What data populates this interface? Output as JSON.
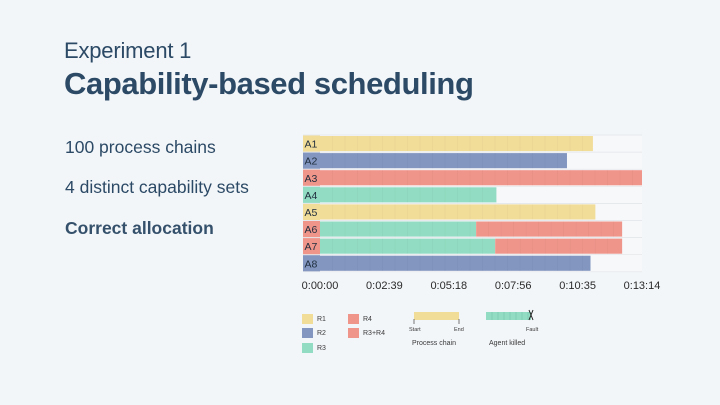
{
  "slide": {
    "subtitle": "Experiment 1",
    "title": "Capability-based scheduling",
    "bullets": [
      "100 process chains",
      "4 distinct capability sets",
      "Correct allocation"
    ]
  },
  "colors": {
    "R1": "#f1dc98",
    "R2": "#8296c0",
    "R3": "#92dcc3",
    "R4": "#f0958a",
    "R3+R4": "#f0958a"
  },
  "chart_data": {
    "type": "gantt",
    "x_ticks": [
      "0:00:00",
      "0:02:39",
      "0:05:18",
      "0:07:56",
      "0:10:35",
      "0:13:14"
    ],
    "x_max_seconds": 794,
    "rows": [
      {
        "label": "A1",
        "capability": "R1",
        "segments": [
          {
            "start": 0,
            "end": 673,
            "cap": "R1"
          }
        ]
      },
      {
        "label": "A2",
        "capability": "R2",
        "segments": [
          {
            "start": 0,
            "end": 609,
            "cap": "R2"
          }
        ]
      },
      {
        "label": "A3",
        "capability": "R4",
        "segments": [
          {
            "start": 0,
            "end": 794,
            "cap": "R4"
          }
        ]
      },
      {
        "label": "A4",
        "capability": "R3",
        "segments": [
          {
            "start": 0,
            "end": 435,
            "cap": "R3"
          }
        ]
      },
      {
        "label": "A5",
        "capability": "R1",
        "segments": [
          {
            "start": 0,
            "end": 679,
            "cap": "R1"
          }
        ]
      },
      {
        "label": "A6",
        "capability": "R3+R4",
        "segments": [
          {
            "start": 0,
            "end": 385,
            "cap": "R3"
          },
          {
            "start": 385,
            "end": 745,
            "cap": "R4"
          }
        ]
      },
      {
        "label": "A7",
        "capability": "R3+R4",
        "segments": [
          {
            "start": 0,
            "end": 432,
            "cap": "R3"
          },
          {
            "start": 432,
            "end": 745,
            "cap": "R4"
          }
        ]
      },
      {
        "label": "A8",
        "capability": "R2",
        "segments": [
          {
            "start": 0,
            "end": 667,
            "cap": "R2"
          }
        ]
      }
    ]
  },
  "legend": {
    "items": [
      "R1",
      "R2",
      "R3",
      "R4",
      "R3+R4"
    ],
    "process_chain": {
      "label": "Process chain",
      "start": "Start",
      "end": "End"
    },
    "agent_killed": {
      "label": "Agent killed",
      "fault": "Fault"
    }
  }
}
